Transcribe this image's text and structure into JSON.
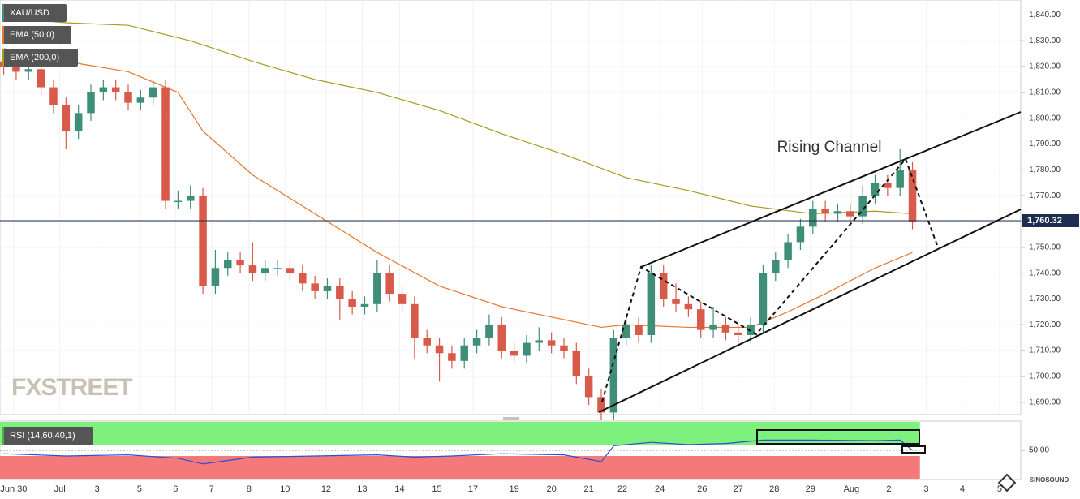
{
  "chart_data": {
    "type": "candlestick",
    "symbol": "XAU/USD",
    "annotation": "Rising Channel",
    "watermark": "FXSTREET",
    "logo": "SINOSOUND",
    "xlim": [
      -0.3,
      81.7
    ],
    "xticks": [
      {
        "value": 0.8,
        "label": "Jun 30"
      },
      {
        "value": 4.5,
        "label": "Jul"
      },
      {
        "value": 7.5,
        "label": "3"
      },
      {
        "value": 10.9,
        "label": "5"
      },
      {
        "value": 13.8,
        "label": "6"
      },
      {
        "value": 16.7,
        "label": "7"
      },
      {
        "value": 19.7,
        "label": "8"
      },
      {
        "value": 22.6,
        "label": "10"
      },
      {
        "value": 25.9,
        "label": "12"
      },
      {
        "value": 28.8,
        "label": "13"
      },
      {
        "value": 31.8,
        "label": "14"
      },
      {
        "value": 34.8,
        "label": "15"
      },
      {
        "value": 37.7,
        "label": "17"
      },
      {
        "value": 41,
        "label": "19"
      },
      {
        "value": 44,
        "label": "20"
      },
      {
        "value": 47,
        "label": "21"
      },
      {
        "value": 49.7,
        "label": "22"
      },
      {
        "value": 52.7,
        "label": "24"
      },
      {
        "value": 56.1,
        "label": "26"
      },
      {
        "value": 59,
        "label": "27"
      },
      {
        "value": 61.9,
        "label": "28"
      },
      {
        "value": 64.8,
        "label": "29"
      },
      {
        "value": 68.1,
        "label": "Aug"
      },
      {
        "value": 71.1,
        "label": "2"
      },
      {
        "value": 74.1,
        "label": "3"
      },
      {
        "value": 77,
        "label": "4"
      },
      {
        "value": 80,
        "label": "5"
      }
    ],
    "ylim": [
      1685.2,
      1845.8
    ],
    "yticks": [
      {
        "value": 1840,
        "label": "1,840.00"
      },
      {
        "value": 1830,
        "label": "1,830.00"
      },
      {
        "value": 1820,
        "label": "1,820.00"
      },
      {
        "value": 1810,
        "label": "1,810.00"
      },
      {
        "value": 1800,
        "label": "1,800.00"
      },
      {
        "value": 1790,
        "label": "1,790.00"
      },
      {
        "value": 1780,
        "label": "1,780.00"
      },
      {
        "value": 1770,
        "label": "1,770.00"
      },
      {
        "value": 1760,
        "label": "1,760.00"
      },
      {
        "value": 1750,
        "label": "1,750.00"
      },
      {
        "value": 1740,
        "label": "1,740.00"
      },
      {
        "value": 1730,
        "label": "1,730.00"
      },
      {
        "value": 1720,
        "label": "1,720.00"
      },
      {
        "value": 1710,
        "label": "1,710.00"
      },
      {
        "value": 1700,
        "label": "1,700.00"
      },
      {
        "value": 1690,
        "label": "1,690.00"
      }
    ],
    "grid": true,
    "up_color": "#3f8f78",
    "down_color": "#d85a4b",
    "last_price": {
      "value": 1760.32,
      "label": "1,760.32"
    },
    "open": [
      1822,
      1820,
      1818,
      1819,
      1812,
      1805,
      1795,
      1802,
      1810,
      1812,
      1810,
      1806,
      1808,
      1812,
      1768,
      1768,
      1770,
      1735,
      1742,
      1745,
      1743,
      1740,
      1742,
      1742,
      1740,
      1736,
      1733,
      1735,
      1730,
      1727,
      1728,
      1740,
      1732,
      1728,
      1715,
      1712,
      1709,
      1706,
      1712,
      1715,
      1720,
      1710,
      1708,
      1713,
      1714,
      1712,
      1710,
      1700,
      1692,
      1686,
      1715,
      1720,
      1716,
      1740,
      1730,
      1728,
      1726,
      1718,
      1720,
      1717,
      1716,
      1720,
      1740,
      1745,
      1752,
      1758,
      1765,
      1763,
      1764,
      1762,
      1770,
      1775,
      1773,
      1780
    ],
    "high": [
      1825,
      1823,
      1822,
      1822,
      1815,
      1808,
      1805,
      1813,
      1815,
      1815,
      1813,
      1811,
      1815,
      1815,
      1772,
      1774,
      1773,
      1749,
      1748,
      1748,
      1752,
      1745,
      1745,
      1745,
      1743,
      1739,
      1738,
      1738,
      1733,
      1731,
      1745,
      1743,
      1735,
      1731,
      1718,
      1715,
      1712,
      1715,
      1718,
      1724,
      1723,
      1713,
      1716,
      1719,
      1717,
      1715,
      1713,
      1703,
      1695,
      1718,
      1723,
      1723,
      1743,
      1743,
      1736,
      1731,
      1729,
      1727,
      1723,
      1720,
      1723,
      1743,
      1748,
      1755,
      1761,
      1768,
      1768,
      1767,
      1767,
      1774,
      1778,
      1778,
      1788,
      1783
    ],
    "low": [
      1817,
      1815,
      1815,
      1809,
      1802,
      1788,
      1792,
      1799,
      1807,
      1807,
      1803,
      1803,
      1805,
      1765,
      1765,
      1765,
      1732,
      1732,
      1739,
      1740,
      1737,
      1737,
      1739,
      1737,
      1733,
      1730,
      1730,
      1722,
      1724,
      1724,
      1725,
      1729,
      1725,
      1707,
      1709,
      1698,
      1703,
      1703,
      1709,
      1712,
      1707,
      1705,
      1705,
      1710,
      1709,
      1707,
      1697,
      1689,
      1683,
      1683,
      1712,
      1713,
      1713,
      1727,
      1725,
      1723,
      1715,
      1715,
      1714,
      1713,
      1713,
      1717,
      1737,
      1742,
      1749,
      1755,
      1760,
      1760,
      1759,
      1759,
      1767,
      1770,
      1770,
      1757
    ],
    "close": [
      1820,
      1818,
      1819,
      1812,
      1805,
      1795,
      1802,
      1810,
      1812,
      1810,
      1806,
      1808,
      1812,
      1768,
      1768,
      1770,
      1735,
      1742,
      1745,
      1743,
      1740,
      1742,
      1742,
      1740,
      1736,
      1733,
      1735,
      1730,
      1727,
      1728,
      1740,
      1732,
      1728,
      1715,
      1712,
      1709,
      1706,
      1712,
      1715,
      1720,
      1710,
      1708,
      1713,
      1714,
      1712,
      1710,
      1700,
      1692,
      1686,
      1715,
      1720,
      1716,
      1740,
      1730,
      1728,
      1726,
      1718,
      1720,
      1717,
      1716,
      1720,
      1740,
      1745,
      1752,
      1758,
      1765,
      1763,
      1764,
      1762,
      1770,
      1775,
      1773,
      1780,
      1760
    ],
    "series": [
      {
        "name": "EMA (50,0)",
        "color": "#e8762b",
        "x": [
          0,
          5,
          10,
          14,
          16,
          20,
          25,
          30,
          35,
          40,
          45,
          48,
          50,
          55,
          60,
          63,
          66,
          70,
          73
        ],
        "values": [
          1827,
          1822,
          1818,
          1810,
          1795,
          1778,
          1763,
          1748,
          1735,
          1727,
          1722,
          1719,
          1720,
          1719,
          1719,
          1725,
          1732,
          1742,
          1748
        ]
      },
      {
        "name": "EMA (200,0)",
        "color": "#a89a1e",
        "x": [
          0,
          5,
          10,
          15,
          20,
          25,
          30,
          35,
          40,
          45,
          50,
          55,
          60,
          65,
          70,
          73
        ],
        "values": [
          1839,
          1837,
          1836,
          1830,
          1822,
          1815,
          1810,
          1803,
          1794,
          1786,
          1777,
          1772,
          1766,
          1763,
          1764,
          1763
        ]
      }
    ],
    "rsi": {
      "name": "RSI (14,60,40,1)",
      "color": "#2b4fd6",
      "ylim": [
        0,
        100
      ],
      "upper": 60,
      "lower": 40,
      "yticks": [
        {
          "value": 50,
          "label": "50.00"
        }
      ],
      "x": [
        0,
        5,
        10,
        14,
        16,
        20,
        25,
        30,
        33,
        36,
        40,
        45,
        48,
        49,
        52,
        55,
        58,
        61,
        65,
        70,
        72,
        73
      ],
      "values": [
        44,
        40,
        42,
        36,
        26,
        38,
        40,
        42,
        38,
        40,
        44,
        42,
        30,
        58,
        64,
        60,
        62,
        68,
        68,
        67,
        68,
        50
      ]
    }
  }
}
